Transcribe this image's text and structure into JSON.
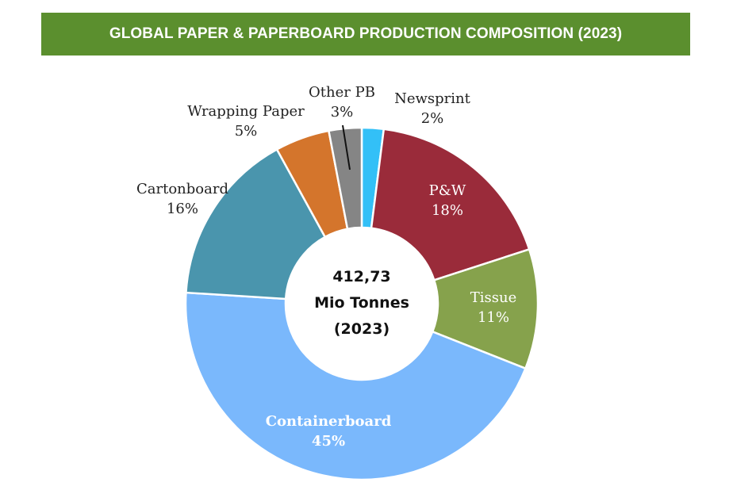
{
  "title": "GLOBAL PAPER & PAPERBOARD PRODUCTION COMPOSITION (2023)",
  "colors": {
    "banner": "#5b8f2e",
    "banner_text": "#ffffff"
  },
  "chart_data": {
    "type": "pie",
    "donut": true,
    "center_text": [
      "412,73",
      "Mio Tonnes",
      "(2023)"
    ],
    "total": 412.73,
    "unit": "Mio Tonnes",
    "year": 2023,
    "slices": [
      {
        "name": "Newsprint",
        "value": 2,
        "value_label": "2%",
        "color": "#33c0f7",
        "label_color": "#222222",
        "label_position": "outside"
      },
      {
        "name": "P&W",
        "value": 18,
        "value_label": "18%",
        "color": "#9a2b3a",
        "label_color": "#ffffff",
        "label_position": "inside"
      },
      {
        "name": "Tissue",
        "value": 11,
        "value_label": "11%",
        "color": "#86a24c",
        "label_color": "#ffffff",
        "label_position": "inside"
      },
      {
        "name": "Containerboard",
        "value": 45,
        "value_label": "45%",
        "color": "#7ab8fc",
        "label_color": "#ffffff",
        "label_position": "inside"
      },
      {
        "name": "Cartonboard",
        "value": 16,
        "value_label": "16%",
        "color": "#4a95ad",
        "label_color": "#222222",
        "label_position": "outside"
      },
      {
        "name": "Wrapping Paper",
        "value": 5,
        "value_label": "5%",
        "color": "#d4752c",
        "label_color": "#222222",
        "label_position": "outside"
      },
      {
        "name": "Other PB",
        "value": 3,
        "value_label": "3%",
        "color": "#858585",
        "label_color": "#222222",
        "label_position": "outside"
      }
    ]
  }
}
